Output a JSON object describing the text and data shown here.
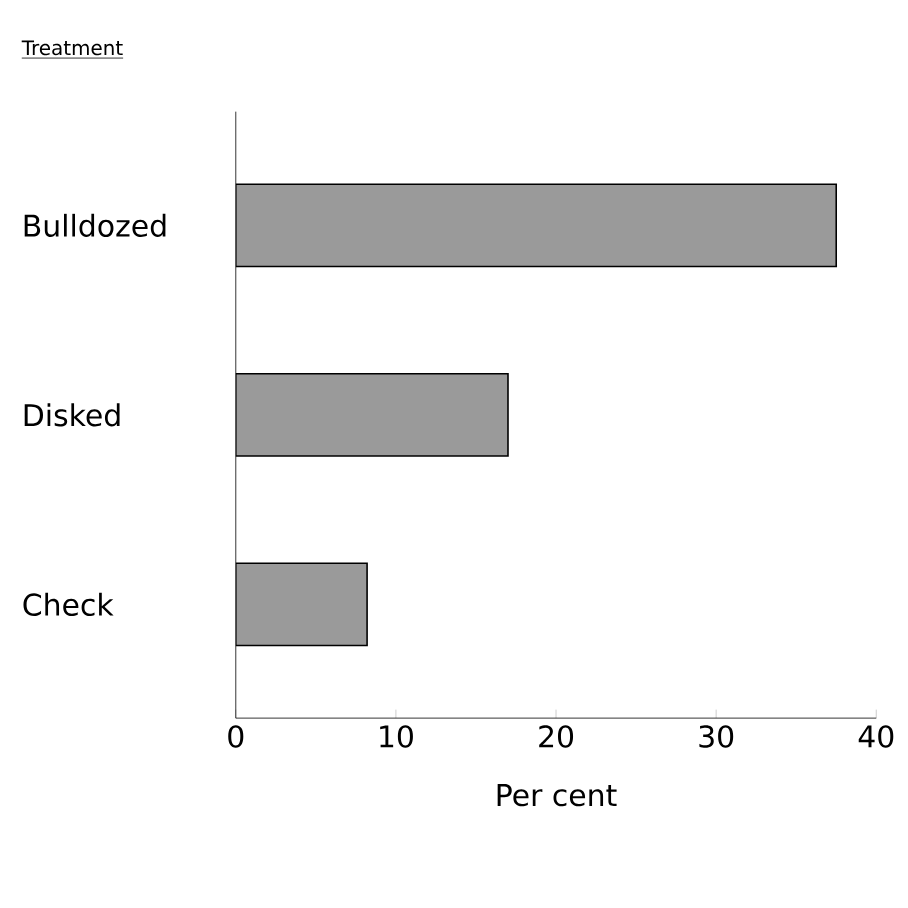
{
  "chart_data": {
    "type": "bar",
    "orientation": "horizontal",
    "ylabel": "Treatment",
    "xlabel": "Per cent",
    "categories": [
      "Bulldozed",
      "Disked",
      "Check"
    ],
    "values": [
      37.5,
      17,
      8.2
    ],
    "color": "#9a9a9a",
    "xlim": [
      0,
      40
    ],
    "xticks": [
      0,
      10,
      20,
      30,
      40
    ],
    "grid": false
  }
}
